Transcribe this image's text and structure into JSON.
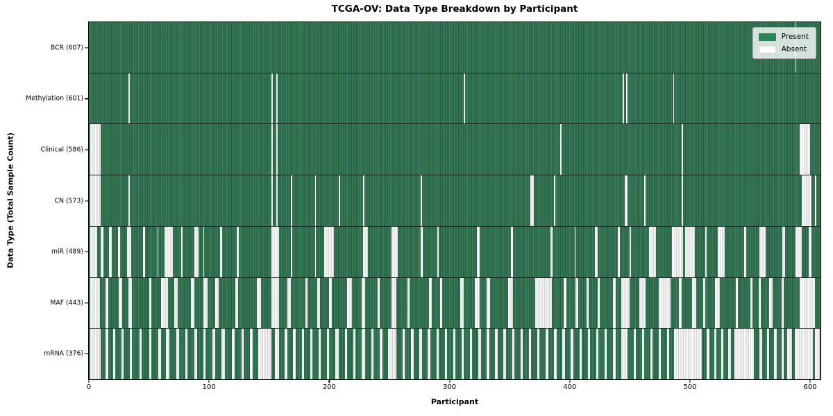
{
  "chart_data": {
    "type": "heatmap",
    "title": "TCGA-OV: Data Type Breakdown by Participant",
    "xlabel": "Participant",
    "ylabel": "Data Type (Total Sample Count)",
    "x_ticks": [
      0,
      100,
      200,
      300,
      400,
      500,
      600
    ],
    "x_max": 608.6,
    "n_participants": 608,
    "grid": false,
    "legend_position": "upper right",
    "legend_items": [
      {
        "label": "Present",
        "swatch": "present",
        "color": "#2e8457"
      },
      {
        "label": "Absent",
        "swatch": "absent",
        "color": "#ffffff"
      }
    ],
    "colors": {
      "present_stripe_light": "#3a7d5a",
      "present_stripe_dark": "#235c40",
      "absent_stripe_light": "#fdfdfd",
      "absent_stripe_dark": "#cfcfcf",
      "legend_present": "#2e8457",
      "legend_absent": "#ffffff"
    },
    "rows": [
      {
        "key": "bcr",
        "label": "BCR (607)",
        "data_type": "BCR",
        "present_count": 607,
        "absent_ranges": [
          [
            587,
            588
          ]
        ]
      },
      {
        "key": "methylation",
        "label": "Methylation (601)",
        "data_type": "Methylation",
        "present_count": 601,
        "absent_ranges": [
          [
            33,
            34
          ],
          [
            152,
            153
          ],
          [
            156,
            157
          ],
          [
            312,
            313
          ],
          [
            444,
            445
          ],
          [
            447,
            448
          ],
          [
            486,
            487
          ]
        ]
      },
      {
        "key": "clinical",
        "label": "Clinical (586)",
        "data_type": "Clinical",
        "present_count": 586,
        "absent_ranges": [
          [
            1,
            10
          ],
          [
            152,
            153
          ],
          [
            156,
            157
          ],
          [
            392,
            393
          ],
          [
            493,
            494
          ],
          [
            591,
            600
          ]
        ]
      },
      {
        "key": "cn",
        "label": "CN (573)",
        "data_type": "CN",
        "present_count": 573,
        "absent_ranges": [
          [
            1,
            10
          ],
          [
            33,
            34
          ],
          [
            152,
            153
          ],
          [
            156,
            157
          ],
          [
            168,
            169
          ],
          [
            188,
            189
          ],
          [
            208,
            209
          ],
          [
            228,
            229
          ],
          [
            276,
            277
          ],
          [
            367,
            370
          ],
          [
            387,
            388
          ],
          [
            446,
            448
          ],
          [
            462,
            463
          ],
          [
            493,
            494
          ],
          [
            593,
            601
          ],
          [
            604,
            605
          ]
        ]
      },
      {
        "key": "mir",
        "label": "miR (489)",
        "data_type": "miR",
        "present_count": 489,
        "absent_ranges": [
          [
            1,
            7
          ],
          [
            10,
            12
          ],
          [
            17,
            19
          ],
          [
            24,
            26
          ],
          [
            32,
            35
          ],
          [
            45,
            47
          ],
          [
            57,
            58
          ],
          [
            63,
            70
          ],
          [
            77,
            78
          ],
          [
            88,
            91
          ],
          [
            95,
            96
          ],
          [
            109,
            111
          ],
          [
            123,
            125
          ],
          [
            152,
            158
          ],
          [
            168,
            169
          ],
          [
            188,
            189
          ],
          [
            196,
            204
          ],
          [
            228,
            232
          ],
          [
            252,
            257
          ],
          [
            276,
            278
          ],
          [
            290,
            291
          ],
          [
            323,
            325
          ],
          [
            351,
            353
          ],
          [
            384,
            386
          ],
          [
            404,
            405
          ],
          [
            421,
            423
          ],
          [
            440,
            442
          ],
          [
            450,
            451
          ],
          [
            466,
            472
          ],
          [
            485,
            494
          ],
          [
            496,
            504
          ],
          [
            513,
            514
          ],
          [
            523,
            529
          ],
          [
            545,
            547
          ],
          [
            558,
            563
          ],
          [
            577,
            579
          ],
          [
            588,
            593
          ],
          [
            599,
            601
          ]
        ]
      },
      {
        "key": "maf",
        "label": "MAF (443)",
        "data_type": "MAF",
        "present_count": 443,
        "absent_ranges": [
          [
            1,
            9
          ],
          [
            14,
            16
          ],
          [
            25,
            28
          ],
          [
            33,
            36
          ],
          [
            50,
            52
          ],
          [
            60,
            66
          ],
          [
            71,
            74
          ],
          [
            85,
            88
          ],
          [
            95,
            99
          ],
          [
            105,
            108
          ],
          [
            122,
            124
          ],
          [
            140,
            143
          ],
          [
            152,
            158
          ],
          [
            165,
            168
          ],
          [
            180,
            182
          ],
          [
            190,
            192
          ],
          [
            200,
            202
          ],
          [
            215,
            219
          ],
          [
            227,
            230
          ],
          [
            240,
            242
          ],
          [
            252,
            256
          ],
          [
            265,
            267
          ],
          [
            283,
            285
          ],
          [
            292,
            294
          ],
          [
            309,
            312
          ],
          [
            321,
            325
          ],
          [
            331,
            334
          ],
          [
            349,
            353
          ],
          [
            371,
            385
          ],
          [
            395,
            397
          ],
          [
            405,
            407
          ],
          [
            414,
            416
          ],
          [
            423,
            425
          ],
          [
            436,
            438
          ],
          [
            443,
            450
          ],
          [
            458,
            463
          ],
          [
            474,
            484
          ],
          [
            491,
            493
          ],
          [
            502,
            505
          ],
          [
            511,
            513
          ],
          [
            521,
            525
          ],
          [
            538,
            540
          ],
          [
            550,
            552
          ],
          [
            557,
            559
          ],
          [
            566,
            569
          ],
          [
            576,
            578
          ],
          [
            591,
            604
          ]
        ]
      },
      {
        "key": "mrna",
        "label": "mRNA (376)",
        "data_type": "mRNA",
        "present_count": 376,
        "absent_ranges": [
          [
            1,
            10
          ],
          [
            14,
            16
          ],
          [
            20,
            22
          ],
          [
            27,
            29
          ],
          [
            34,
            36
          ],
          [
            42,
            44
          ],
          [
            50,
            52
          ],
          [
            58,
            60
          ],
          [
            64,
            67
          ],
          [
            73,
            75
          ],
          [
            80,
            82
          ],
          [
            88,
            90
          ],
          [
            95,
            97
          ],
          [
            103,
            105
          ],
          [
            110,
            113
          ],
          [
            119,
            121
          ],
          [
            127,
            129
          ],
          [
            134,
            136
          ],
          [
            141,
            152
          ],
          [
            155,
            158
          ],
          [
            163,
            165
          ],
          [
            170,
            172
          ],
          [
            177,
            179
          ],
          [
            184,
            186
          ],
          [
            191,
            193
          ],
          [
            198,
            200
          ],
          [
            205,
            208
          ],
          [
            213,
            215
          ],
          [
            220,
            222
          ],
          [
            227,
            230
          ],
          [
            235,
            237
          ],
          [
            242,
            244
          ],
          [
            249,
            256
          ],
          [
            261,
            263
          ],
          [
            268,
            270
          ],
          [
            275,
            277
          ],
          [
            282,
            284
          ],
          [
            289,
            291
          ],
          [
            296,
            298
          ],
          [
            303,
            305
          ],
          [
            310,
            312
          ],
          [
            317,
            319
          ],
          [
            324,
            326
          ],
          [
            331,
            333
          ],
          [
            338,
            340
          ],
          [
            345,
            347
          ],
          [
            352,
            354
          ],
          [
            359,
            361
          ],
          [
            366,
            368
          ],
          [
            373,
            375
          ],
          [
            380,
            382
          ],
          [
            387,
            389
          ],
          [
            394,
            396
          ],
          [
            401,
            403
          ],
          [
            408,
            410
          ],
          [
            415,
            417
          ],
          [
            422,
            424
          ],
          [
            429,
            431
          ],
          [
            436,
            438
          ],
          [
            443,
            448
          ],
          [
            453,
            455
          ],
          [
            460,
            462
          ],
          [
            467,
            469
          ],
          [
            474,
            476
          ],
          [
            481,
            483
          ],
          [
            487,
            510
          ],
          [
            514,
            516
          ],
          [
            520,
            522
          ],
          [
            526,
            528
          ],
          [
            532,
            534
          ],
          [
            537,
            553
          ],
          [
            558,
            560
          ],
          [
            564,
            566
          ],
          [
            570,
            572
          ],
          [
            576,
            578
          ],
          [
            581,
            585
          ],
          [
            587,
            602
          ],
          [
            604,
            608
          ]
        ]
      }
    ]
  }
}
